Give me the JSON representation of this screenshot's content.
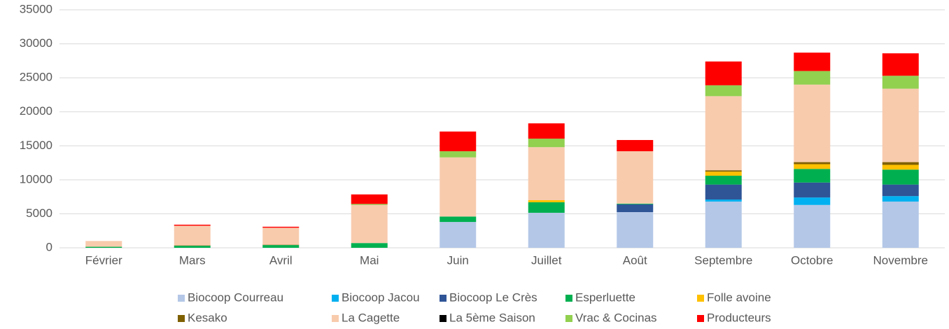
{
  "chart_data": {
    "type": "stacked_bar",
    "categories": [
      "Février",
      "Mars",
      "Avril",
      "Mai",
      "Juin",
      "Juillet",
      "Août",
      "Septembre",
      "Octobre",
      "Novembre"
    ],
    "ylim": [
      0,
      35000
    ],
    "yticks": [
      0,
      5000,
      10000,
      15000,
      20000,
      25000,
      30000,
      35000
    ],
    "grid": true,
    "legend": "bottom",
    "series": [
      {
        "name": "Biocoop Courreau",
        "color": "#b4c7e7",
        "values": [
          0,
          0,
          0,
          0,
          3800,
          5150,
          5250,
          6800,
          6300,
          6800
        ]
      },
      {
        "name": "Biocoop Jacou",
        "color": "#00b0f0",
        "values": [
          0,
          0,
          0,
          0,
          0,
          0,
          0,
          300,
          1100,
          800
        ]
      },
      {
        "name": "Biocoop Le Crès",
        "color": "#2f5597",
        "values": [
          0,
          0,
          0,
          0,
          0,
          0,
          1150,
          2200,
          2200,
          1700
        ]
      },
      {
        "name": "Esperluette",
        "color": "#00b050",
        "values": [
          150,
          300,
          400,
          700,
          800,
          1550,
          100,
          1300,
          2000,
          2200
        ]
      },
      {
        "name": "Folle avoine",
        "color": "#ffc000",
        "values": [
          0,
          0,
          0,
          0,
          0,
          300,
          0,
          600,
          700,
          700
        ]
      },
      {
        "name": "Kesako",
        "color": "#7f6000",
        "values": [
          0,
          50,
          50,
          0,
          0,
          0,
          0,
          200,
          300,
          400
        ]
      },
      {
        "name": "La Cagette",
        "color": "#f8cbad",
        "values": [
          850,
          2900,
          2500,
          5600,
          8700,
          7800,
          7700,
          10900,
          11400,
          10800
        ]
      },
      {
        "name": "La 5ème Saison",
        "color": "#000000",
        "values": [
          0,
          0,
          0,
          0,
          0,
          0,
          0,
          0,
          0,
          0
        ]
      },
      {
        "name": "Vrac & Cocinas",
        "color": "#92d050",
        "values": [
          0,
          0,
          0,
          150,
          900,
          1250,
          0,
          1600,
          2000,
          1900
        ]
      },
      {
        "name": "Producteurs",
        "color": "#ff0000",
        "values": [
          0,
          150,
          150,
          1400,
          2900,
          2250,
          1650,
          3500,
          2700,
          3300
        ]
      }
    ]
  }
}
